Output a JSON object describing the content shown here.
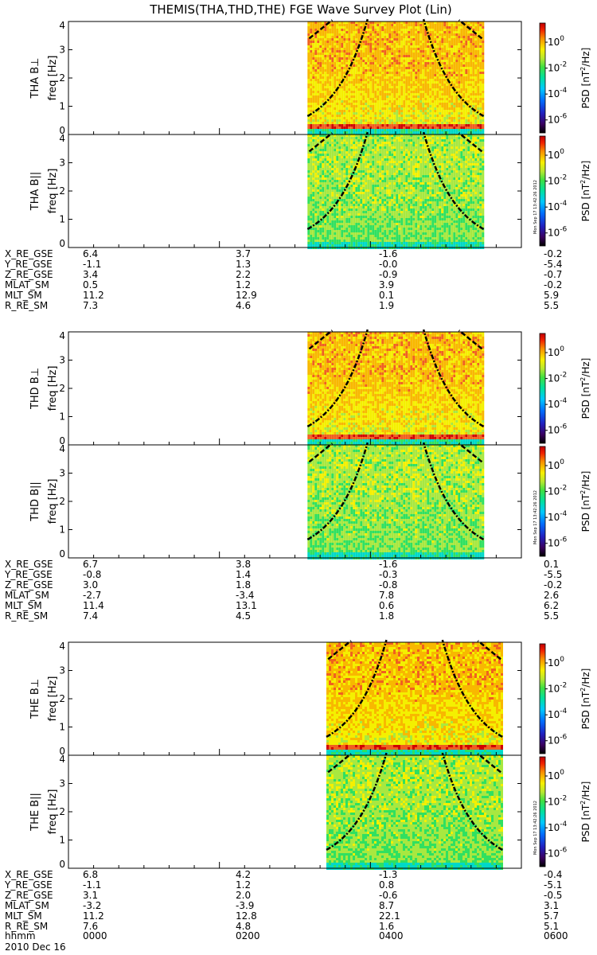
{
  "title": "THEMIS(THA,THD,THE) FGE Wave Survey Plot (Lin)",
  "date_label": "2010 Dec 16",
  "time_row_label": "hhmm",
  "colors": {
    "spectrogram_ramp": [
      "#1a00a0",
      "#1640e0",
      "#00b0ff",
      "#00d8c8",
      "#30e060",
      "#a8e840",
      "#f4f000",
      "#f8b800",
      "#f06020",
      "#d00000"
    ],
    "cyclotron_curve": "#000000",
    "background": "#ffffff"
  },
  "colorbar": {
    "label": "PSD [nT²/Hz]",
    "label_base": "PSD [nT",
    "label_sup": "2",
    "label_tail": "/Hz]",
    "scale": "log",
    "range": [
      1e-07,
      30
    ],
    "ticks": [
      {
        "base": "10",
        "exp": "0",
        "value": 1
      },
      {
        "base": "10",
        "exp": "-2",
        "value": 0.01
      },
      {
        "base": "10",
        "exp": "-4",
        "value": 0.0001
      },
      {
        "base": "10",
        "exp": "-6",
        "value": 1e-06
      }
    ],
    "stamp": "Mon Sep 17 13:42:26 2012",
    "stamp_on_panels": [
      false,
      true,
      false,
      true,
      false,
      true
    ]
  },
  "chart_data": {
    "type": "heatmap",
    "x_axis": {
      "label": "hhmm",
      "range": [
        "0000",
        "0600"
      ],
      "ticks": [
        "0000",
        "0200",
        "0400",
        "0600"
      ]
    },
    "y_axis": {
      "range": [
        0,
        4
      ],
      "ticks": [
        "0",
        "1",
        "2",
        "3",
        "4"
      ]
    },
    "probes": [
      {
        "panels": [
          {
            "label": "THA B⊥",
            "ylabel": "freq [Hz]",
            "component": "perp",
            "data_start": "0310",
            "data_end": "0530"
          },
          {
            "label": "THA B||",
            "ylabel": "freq [Hz]",
            "component": "par",
            "data_start": "0310",
            "data_end": "0530"
          }
        ],
        "ephemeris": [
          {
            "label": "X_RE_GSE",
            "values": [
              "6.4",
              "3.7",
              "-1.6",
              "-0.2"
            ]
          },
          {
            "label": "Y_RE_GSE",
            "values": [
              "-1.1",
              "1.3",
              "-0.0",
              "-5.4"
            ]
          },
          {
            "label": "Z_RE_GSE",
            "values": [
              "3.4",
              "2.2",
              "-0.9",
              "-0.7"
            ]
          },
          {
            "label": "MLAT_SM",
            "values": [
              "0.5",
              "1.2",
              "3.9",
              "-0.2"
            ]
          },
          {
            "label": "MLT_SM",
            "values": [
              "11.2",
              "12.9",
              "0.1",
              "5.9"
            ]
          },
          {
            "label": "R_RE_SM",
            "values": [
              "7.3",
              "4.6",
              "1.9",
              "5.5"
            ]
          }
        ]
      },
      {
        "panels": [
          {
            "label": "THD B⊥",
            "ylabel": "freq [Hz]",
            "component": "perp",
            "data_start": "0310",
            "data_end": "0530"
          },
          {
            "label": "THD B||",
            "ylabel": "freq [Hz]",
            "component": "par",
            "data_start": "0310",
            "data_end": "0530"
          }
        ],
        "ephemeris": [
          {
            "label": "X_RE_GSE",
            "values": [
              "6.7",
              "3.8",
              "-1.6",
              "0.1"
            ]
          },
          {
            "label": "Y_RE_GSE",
            "values": [
              "-0.8",
              "1.4",
              "-0.3",
              "-5.5"
            ]
          },
          {
            "label": "Z_RE_GSE",
            "values": [
              "3.0",
              "1.8",
              "-0.8",
              "-0.2"
            ]
          },
          {
            "label": "MLAT_SM",
            "values": [
              "-2.7",
              "-3.4",
              "7.8",
              "2.6"
            ]
          },
          {
            "label": "MLT_SM",
            "values": [
              "11.4",
              "13.1",
              "0.6",
              "6.2"
            ]
          },
          {
            "label": "R_RE_SM",
            "values": [
              "7.4",
              "4.5",
              "1.8",
              "5.5"
            ]
          }
        ]
      },
      {
        "panels": [
          {
            "label": "THE B⊥",
            "ylabel": "freq [Hz]",
            "component": "perp",
            "data_start": "0325",
            "data_end": "0545"
          },
          {
            "label": "THE B||",
            "ylabel": "freq [Hz]",
            "component": "par",
            "data_start": "0325",
            "data_end": "0545"
          }
        ],
        "ephemeris": [
          {
            "label": "X_RE_GSE",
            "values": [
              "6.8",
              "4.2",
              "-1.3",
              "-0.4"
            ]
          },
          {
            "label": "Y_RE_GSE",
            "values": [
              "-1.1",
              "1.2",
              "0.8",
              "-5.1"
            ]
          },
          {
            "label": "Z_RE_GSE",
            "values": [
              "3.1",
              "2.0",
              "-0.6",
              "-0.5"
            ]
          },
          {
            "label": "MLAT_SM",
            "values": [
              "-3.2",
              "-3.9",
              "8.7",
              "3.1"
            ]
          },
          {
            "label": "MLT_SM",
            "values": [
              "11.2",
              "12.8",
              "22.1",
              "5.7"
            ]
          },
          {
            "label": "R_RE_SM",
            "values": [
              "7.6",
              "4.8",
              "1.6",
              "5.1"
            ]
          }
        ]
      }
    ]
  }
}
